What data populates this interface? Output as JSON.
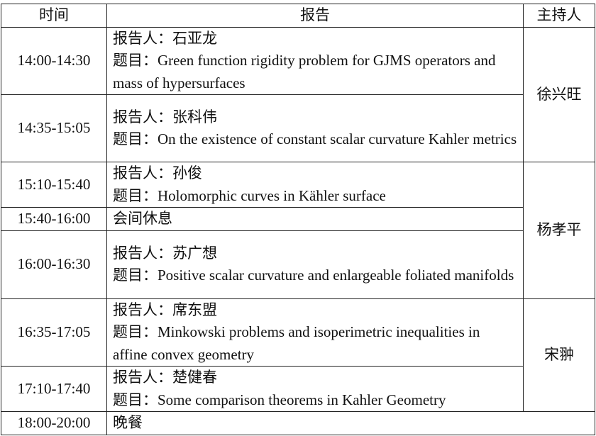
{
  "headers": {
    "time": "时间",
    "report": "报告",
    "host": "主持人"
  },
  "speaker_prefix": "报告人：",
  "title_prefix": "题目：",
  "rows": [
    {
      "time": "14:00-14:30",
      "speaker": "石亚龙",
      "title": "Green function rigidity problem for GJMS operators and mass of hypersurfaces"
    },
    {
      "time": "14:35-15:05",
      "speaker": "张科伟",
      "title": "On the existence of constant scalar curvature Kahler metrics"
    },
    {
      "time": "15:10-15:40",
      "speaker": "孙俊",
      "title": "Holomorphic curves in Kähler surface"
    },
    {
      "time": "15:40-16:00",
      "note": "会间休息"
    },
    {
      "time": "16:00-16:30",
      "speaker": "苏广想",
      "title": "Positive scalar curvature and enlargeable foliated manifolds"
    },
    {
      "time": "16:35-17:05",
      "speaker": "席东盟",
      "title": "Minkowski problems and isoperimetric inequalities in affine convex geometry"
    },
    {
      "time": "17:10-17:40",
      "speaker": "楚健春",
      "title": "Some comparison theorems in Kahler Geometry"
    },
    {
      "time": "18:00-20:00",
      "note": "晚餐"
    }
  ],
  "hosts": [
    "徐兴旺",
    "杨孝平",
    "宋翀"
  ]
}
